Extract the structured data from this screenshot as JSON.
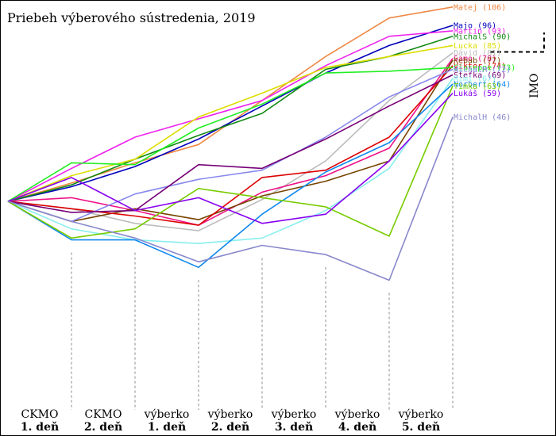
{
  "chart_data": {
    "type": "line",
    "title": "Priebeh výberového sústredenia, 2019",
    "categories": [
      {
        "line1": "CKMO",
        "line2": "1. deň"
      },
      {
        "line1": "CKMO",
        "line2": "2. deň"
      },
      {
        "line1": "výberko",
        "line2": "1. deň"
      },
      {
        "line1": "výberko",
        "line2": "2. deň"
      },
      {
        "line1": "výberko",
        "line2": "3. deň"
      },
      {
        "line1": "výberko",
        "line2": "4. deň"
      },
      {
        "line1": "výberko",
        "line2": "5. deň"
      }
    ],
    "imo_threshold": {
      "label": "IMO",
      "value": 81.5
    },
    "series": [
      {
        "name": "Matej",
        "total": "106",
        "color": "#ee8844",
        "values": [
          10,
          21,
          31,
          55,
          79,
          100,
          106
        ]
      },
      {
        "name": "Majo",
        "total": "96",
        "color": "#0000bb",
        "values": [
          8,
          19,
          34,
          52,
          70,
          85,
          96
        ]
      },
      {
        "name": "Martin",
        "total": "93",
        "color": "#ee22ee",
        "values": [
          18,
          35,
          45,
          55,
          74,
          90,
          93
        ]
      },
      {
        "name": "MichalS",
        "total": "90",
        "color": "#118811",
        "values": [
          9,
          23,
          36,
          48,
          72,
          79,
          90
        ]
      },
      {
        "name": "Lucka",
        "total": "85",
        "color": "#dddd00",
        "values": [
          14,
          23,
          46,
          59,
          73,
          79,
          85
        ]
      },
      {
        "name": "Dávid",
        "total": "81",
        "color": "#bbbbbb",
        "values": [
          -4,
          -12,
          -16,
          1,
          22,
          55,
          81
        ]
      },
      {
        "name": "Samo",
        "total": "78",
        "color": "#ee1188",
        "values": [
          2,
          -5,
          -13,
          5,
          14,
          29,
          78
        ]
      },
      {
        "name": "Kebab",
        "total": "77",
        "color": "#774400",
        "values": [
          -11,
          -4,
          -10,
          3,
          11,
          22,
          77
        ]
      },
      {
        "name": "Viktor",
        "total": "74",
        "color": "#dd0000",
        "values": [
          -4,
          -8,
          -13,
          13,
          17,
          35,
          74
        ]
      },
      {
        "name": "Giuseppe",
        "total": "73",
        "color": "#22ee22",
        "values": [
          21,
          20,
          40,
          53,
          70,
          71,
          73
        ]
      },
      {
        "name": "MichalM",
        "total": "72",
        "color": "#8888ee",
        "values": [
          -11,
          4,
          12,
          17,
          35,
          57,
          72
        ]
      },
      {
        "name": "Štefka",
        "total": "69",
        "color": "#770077",
        "values": [
          -6,
          -5,
          20,
          18,
          34,
          52,
          69
        ]
      },
      {
        "name": "Mimi",
        "total": "67",
        "color": "#88eeee",
        "values": [
          -15,
          -21,
          -23,
          -20,
          -5,
          18,
          67
        ]
      },
      {
        "name": "Norbert",
        "total": "64",
        "color": "#1188ee",
        "values": [
          -21,
          -21,
          -36,
          -7,
          16,
          32,
          64
        ]
      },
      {
        "name": "Timka",
        "total": "63",
        "color": "#77cc00",
        "values": [
          -20,
          -15,
          7,
          2,
          -3,
          -19,
          63
        ]
      },
      {
        "name": "Lukáš",
        "total": "59",
        "color": "#8800ee",
        "values": [
          13,
          -5,
          2,
          -12,
          -7,
          22,
          59
        ]
      },
      {
        "name": "MichalH",
        "total": "46",
        "color": "#8888cc",
        "values": [
          -11,
          -20,
          -33,
          -24,
          -29,
          -43,
          46
        ]
      }
    ]
  }
}
